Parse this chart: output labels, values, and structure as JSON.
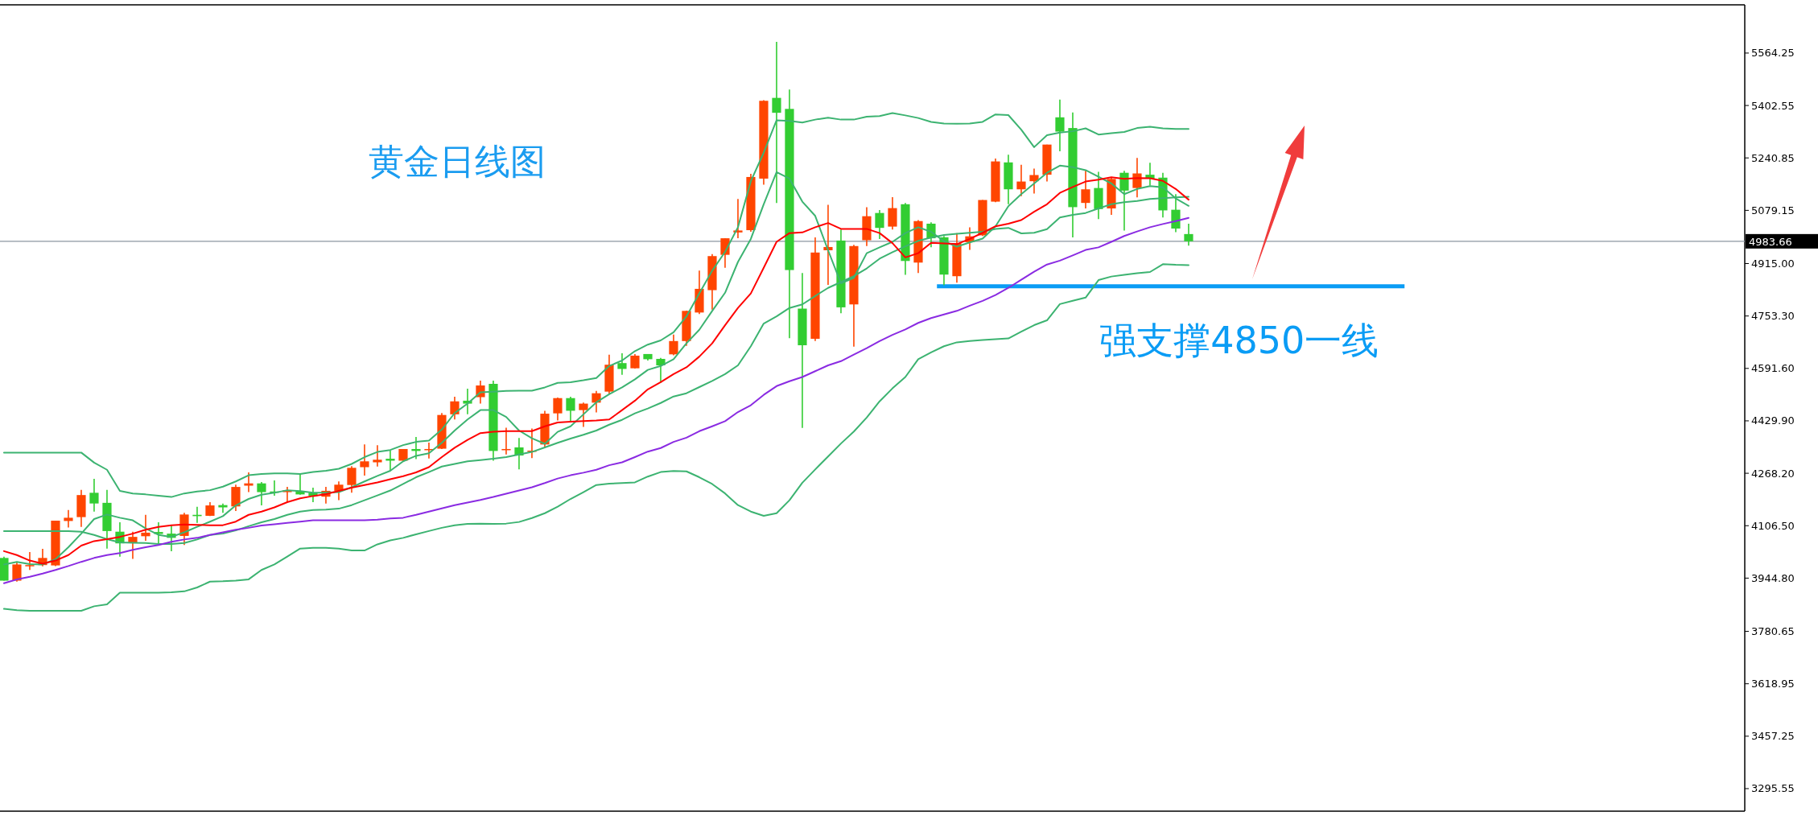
{
  "chart_data": {
    "type": "candlestick",
    "title": "黄金日线图",
    "categories": [
      null,
      null,
      null,
      null,
      null,
      null,
      null,
      null,
      null,
      null,
      null,
      null,
      null,
      null,
      null,
      null,
      null,
      null,
      null,
      null,
      null,
      null,
      null,
      null,
      null,
      null,
      null,
      null,
      null,
      null,
      null,
      null,
      null,
      null,
      null,
      null,
      null,
      null,
      null,
      null,
      null,
      null,
      null,
      null,
      null,
      null,
      null,
      null,
      null,
      null,
      null,
      null,
      null,
      null,
      null,
      null,
      null,
      null,
      null,
      null,
      null,
      null,
      null,
      null,
      null,
      null,
      null,
      null,
      null,
      null,
      null,
      null,
      null,
      null,
      null,
      null,
      null,
      null,
      null,
      null,
      null,
      null,
      null,
      null,
      null,
      null,
      null,
      null,
      null,
      null,
      null,
      null,
      null
    ],
    "ohlc": [
      [
        4007,
        4011,
        3937,
        3937
      ],
      [
        3937,
        3995,
        3934,
        3987
      ],
      [
        3982,
        4025,
        3970,
        3985
      ],
      [
        3985,
        4035,
        3981,
        4007
      ],
      [
        3984,
        4122,
        3982,
        4122
      ],
      [
        4121,
        4155,
        4101,
        4131
      ],
      [
        4133,
        4217,
        4103,
        4201
      ],
      [
        4208,
        4251,
        4150,
        4175
      ],
      [
        4177,
        4217,
        4036,
        4090
      ],
      [
        4088,
        4117,
        4011,
        4052
      ],
      [
        4055,
        4088,
        4004,
        4072
      ],
      [
        4074,
        4140,
        4060,
        4085
      ],
      [
        4087,
        4117,
        4050,
        4081
      ],
      [
        4082,
        4107,
        4028,
        4069
      ],
      [
        4075,
        4146,
        4047,
        4141
      ],
      [
        4140,
        4165,
        4115,
        4136
      ],
      [
        4137,
        4179,
        4136,
        4169
      ],
      [
        4170,
        4175,
        4146,
        4163
      ],
      [
        4166,
        4233,
        4152,
        4226
      ],
      [
        4230,
        4271,
        4210,
        4237
      ],
      [
        4237,
        4241,
        4169,
        4210
      ],
      [
        4212,
        4246,
        4199,
        4208
      ],
      [
        4210,
        4226,
        4179,
        4216
      ],
      [
        4214,
        4266,
        4202,
        4203
      ],
      [
        4208,
        4224,
        4179,
        4198
      ],
      [
        4196,
        4226,
        4175,
        4214
      ],
      [
        4214,
        4243,
        4185,
        4233
      ],
      [
        4232,
        4290,
        4208,
        4285
      ],
      [
        4287,
        4357,
        4261,
        4305
      ],
      [
        4302,
        4355,
        4289,
        4310
      ],
      [
        4313,
        4338,
        4275,
        4307
      ],
      [
        4307,
        4343,
        4305,
        4343
      ],
      [
        4343,
        4380,
        4312,
        4337
      ],
      [
        4340,
        4363,
        4314,
        4343
      ],
      [
        4344,
        4454,
        4343,
        4448
      ],
      [
        4450,
        4504,
        4434,
        4490
      ],
      [
        4492,
        4529,
        4450,
        4483
      ],
      [
        4503,
        4554,
        4483,
        4539
      ],
      [
        4544,
        4554,
        4307,
        4337
      ],
      [
        4340,
        4409,
        4326,
        4343
      ],
      [
        4348,
        4377,
        4280,
        4323
      ],
      [
        4336,
        4406,
        4315,
        4338
      ],
      [
        4357,
        4461,
        4348,
        4452
      ],
      [
        4453,
        4502,
        4431,
        4500
      ],
      [
        4500,
        4504,
        4425,
        4461
      ],
      [
        4463,
        4486,
        4411,
        4483
      ],
      [
        4486,
        4522,
        4456,
        4515
      ],
      [
        4520,
        4634,
        4514,
        4603
      ],
      [
        4608,
        4638,
        4572,
        4590
      ],
      [
        4592,
        4636,
        4591,
        4631
      ],
      [
        4636,
        4636,
        4616,
        4620
      ],
      [
        4621,
        4624,
        4547,
        4601
      ],
      [
        4635,
        4696,
        4632,
        4676
      ],
      [
        4676,
        4770,
        4661,
        4769
      ],
      [
        4764,
        4893,
        4759,
        4837
      ],
      [
        4833,
        4944,
        4773,
        4938
      ],
      [
        4942,
        4993,
        4902,
        4993
      ],
      [
        5011,
        5114,
        4993,
        5017
      ],
      [
        5018,
        5192,
        5013,
        5182
      ],
      [
        5177,
        5419,
        5158,
        5417
      ],
      [
        5426,
        5599,
        5102,
        5380
      ],
      [
        5392,
        5452,
        4685,
        4895
      ],
      [
        4776,
        4886,
        4408,
        4663
      ],
      [
        4683,
        4996,
        4676,
        4949
      ],
      [
        4956,
        5096,
        4849,
        4966
      ],
      [
        4986,
        5020,
        4762,
        4780
      ],
      [
        4789,
        4973,
        4659,
        4969
      ],
      [
        4987,
        5089,
        4969,
        5061
      ],
      [
        5071,
        5080,
        4991,
        5025
      ],
      [
        5029,
        5120,
        5020,
        5086
      ],
      [
        5098,
        5102,
        4880,
        4923
      ],
      [
        4918,
        5049,
        4886,
        5046
      ],
      [
        5038,
        5042,
        4965,
        4993
      ],
      [
        4996,
        5000,
        4848,
        4881
      ],
      [
        4876,
        5009,
        4856,
        4978
      ],
      [
        4981,
        5027,
        4957,
        4999
      ],
      [
        5002,
        5111,
        5000,
        5111
      ],
      [
        5106,
        5239,
        5104,
        5230
      ],
      [
        5227,
        5251,
        5098,
        5144
      ],
      [
        5144,
        5220,
        5123,
        5168
      ],
      [
        5169,
        5208,
        5131,
        5188
      ],
      [
        5189,
        5282,
        5168,
        5282
      ],
      [
        5366,
        5421,
        5261,
        5322
      ],
      [
        5333,
        5381,
        4996,
        5089
      ],
      [
        5102,
        5202,
        5085,
        5144
      ],
      [
        5148,
        5198,
        5052,
        5083
      ],
      [
        5085,
        5181,
        5065,
        5176
      ],
      [
        5195,
        5201,
        5017,
        5140
      ],
      [
        5148,
        5241,
        5119,
        5193
      ],
      [
        5189,
        5226,
        5156,
        5177
      ],
      [
        5180,
        5195,
        5057,
        5079
      ],
      [
        5081,
        5129,
        5012,
        5023
      ],
      [
        5006,
        5038,
        4970,
        4983.66
      ]
    ],
    "colors": [
      "#32cd32",
      "#ff4500",
      "#ff4500",
      "#ff4500",
      "#ff4500",
      "#ff4500",
      "#ff4500",
      "#32cd32",
      "#32cd32",
      "#32cd32",
      "#ff4500",
      "#ff4500",
      "#32cd32",
      "#32cd32",
      "#ff4500",
      "#32cd32",
      "#ff4500",
      "#32cd32",
      "#ff4500",
      "#ff4500",
      "#32cd32",
      "#32cd32",
      "#ff4500",
      "#32cd32",
      "#32cd32",
      "#ff4500",
      "#ff4500",
      "#ff4500",
      "#ff4500",
      "#ff4500",
      "#32cd32",
      "#ff4500",
      "#32cd32",
      "#ff4500",
      "#ff4500",
      "#ff4500",
      "#32cd32",
      "#ff4500",
      "#32cd32",
      "#ff4500",
      "#32cd32",
      "#ff4500",
      "#ff4500",
      "#ff4500",
      "#32cd32",
      "#ff4500",
      "#ff4500",
      "#ff4500",
      "#32cd32",
      "#ff4500",
      "#32cd32",
      "#32cd32",
      "#ff4500",
      "#ff4500",
      "#ff4500",
      "#ff4500",
      "#ff4500",
      "#ff4500",
      "#ff4500",
      "#ff4500",
      "#32cd32",
      "#32cd32",
      "#32cd32",
      "#ff4500",
      "#ff4500",
      "#32cd32",
      "#ff4500",
      "#ff4500",
      "#32cd32",
      "#ff4500",
      "#32cd32",
      "#ff4500",
      "#32cd32",
      "#32cd32",
      "#ff4500",
      "#ff4500",
      "#ff4500",
      "#ff4500",
      "#32cd32",
      "#ff4500",
      "#ff4500",
      "#ff4500",
      "#32cd32",
      "#32cd32",
      "#ff4500",
      "#32cd32",
      "#ff4500",
      "#32cd32",
      "#ff4500",
      "#32cd32",
      "#32cd32",
      "#32cd32",
      "#32cd32"
    ],
    "series": [
      {
        "type": "line",
        "color": "#3cb371",
        "values": [
          4332,
          4332,
          4332,
          4332,
          4332,
          4332,
          4332,
          4301,
          4279,
          4214,
          4206,
          4203,
          4199,
          4195,
          4206,
          4212,
          4216,
          4227,
          4243,
          4262,
          4266,
          4268,
          4268,
          4266,
          4272,
          4276,
          4282,
          4297,
          4318,
          4334,
          4340,
          4355,
          4365,
          4369,
          4403,
          4454,
          4483,
          4518,
          4520,
          4522,
          4523,
          4523,
          4533,
          4547,
          4549,
          4555,
          4562,
          4599,
          4616,
          4645,
          4665,
          4678,
          4703,
          4752,
          4823,
          4893,
          4951,
          5027,
          5169,
          5257,
          5357,
          5355,
          5350,
          5359,
          5365,
          5359,
          5359,
          5368,
          5370,
          5379,
          5372,
          5364,
          5352,
          5347,
          5346,
          5347,
          5352,
          5375,
          5373,
          5328,
          5274,
          5311,
          5319,
          5323,
          5332,
          5313,
          5317,
          5321,
          5333,
          5337,
          5332,
          5330,
          5330
        ]
      },
      {
        "type": "line",
        "color": "#3cb371",
        "values": [
          3987,
          3995,
          3988,
          3987,
          4003,
          4040,
          4082,
          4127,
          4141,
          4131,
          4123,
          4098,
          4078,
          4072,
          4086,
          4103,
          4119,
          4136,
          4169,
          4189,
          4202,
          4208,
          4216,
          4213,
          4208,
          4208,
          4210,
          4225,
          4243,
          4260,
          4276,
          4305,
          4322,
          4330,
          4362,
          4400,
          4434,
          4463,
          4463,
          4442,
          4400,
          4376,
          4359,
          4396,
          4413,
          4450,
          4487,
          4512,
          4533,
          4558,
          4587,
          4599,
          4620,
          4669,
          4711,
          4769,
          4825,
          4920,
          4991,
          5098,
          5197,
          5177,
          5106,
          5062,
          4956,
          4854,
          4871,
          4947,
          4965,
          4982,
          5009,
          5027,
          5013,
          4984,
          4967,
          4980,
          4992,
          5030,
          5092,
          5129,
          5162,
          5195,
          5217,
          5212,
          5203,
          5183,
          5162,
          5129,
          5145,
          5154,
          5150,
          5116,
          5093
        ]
      },
      {
        "type": "line",
        "color": "#3cb371",
        "values": [
          4090,
          4090,
          4090,
          4090,
          4090,
          4090,
          4088,
          4078,
          4065,
          4055,
          4054,
          4053,
          4050,
          4050,
          4053,
          4064,
          4078,
          4082,
          4092,
          4105,
          4117,
          4127,
          4140,
          4150,
          4155,
          4156,
          4159,
          4170,
          4185,
          4200,
          4215,
          4235,
          4256,
          4272,
          4289,
          4297,
          4305,
          4309,
          4313,
          4318,
          4326,
          4334,
          4348,
          4362,
          4375,
          4387,
          4400,
          4418,
          4433,
          4453,
          4468,
          4485,
          4505,
          4515,
          4534,
          4553,
          4574,
          4601,
          4660,
          4730,
          4752,
          4778,
          4789,
          4815,
          4840,
          4858,
          4876,
          4900,
          4930,
          4950,
          4968,
          4985,
          4995,
          5003,
          5007,
          5010,
          5013,
          5022,
          5025,
          5008,
          5010,
          5021,
          5057,
          5065,
          5071,
          5085,
          5098,
          5104,
          5108,
          5114,
          5117,
          5119,
          5121
        ]
      },
      {
        "type": "line",
        "color": "#3cb371",
        "values": [
          3850,
          3846,
          3844,
          3844,
          3844,
          3844,
          3844,
          3858,
          3864,
          3900,
          3900,
          3900,
          3900,
          3901,
          3904,
          3916,
          3934,
          3935,
          3937,
          3941,
          3970,
          3987,
          4011,
          4036,
          4038,
          4038,
          4036,
          4030,
          4030,
          4049,
          4061,
          4069,
          4080,
          4090,
          4100,
          4108,
          4112,
          4113,
          4112,
          4113,
          4118,
          4130,
          4145,
          4165,
          4189,
          4210,
          4232,
          4236,
          4238,
          4240,
          4258,
          4272,
          4275,
          4274,
          4256,
          4235,
          4206,
          4170,
          4150,
          4137,
          4145,
          4185,
          4239,
          4280,
          4320,
          4360,
          4397,
          4440,
          4490,
          4530,
          4565,
          4620,
          4641,
          4660,
          4672,
          4676,
          4679,
          4682,
          4684,
          4705,
          4725,
          4740,
          4790,
          4800,
          4810,
          4864,
          4875,
          4880,
          4885,
          4889,
          4913,
          4911,
          4910
        ]
      },
      {
        "type": "line",
        "color": "#ff0000",
        "values": [
          4028,
          4016,
          3999,
          3989,
          3999,
          4016,
          4045,
          4059,
          4065,
          4072,
          4082,
          4094,
          4103,
          4108,
          4110,
          4109,
          4108,
          4108,
          4119,
          4140,
          4150,
          4163,
          4179,
          4191,
          4198,
          4204,
          4214,
          4224,
          4232,
          4240,
          4250,
          4259,
          4271,
          4287,
          4318,
          4347,
          4371,
          4392,
          4396,
          4398,
          4398,
          4398,
          4413,
          4425,
          4427,
          4429,
          4431,
          4434,
          4463,
          4492,
          4527,
          4549,
          4574,
          4595,
          4628,
          4669,
          4725,
          4778,
          4823,
          4902,
          4982,
          5009,
          5011,
          5027,
          5040,
          5022,
          5022,
          5022,
          5009,
          4978,
          4934,
          4947,
          4979,
          4977,
          4975,
          4991,
          5010,
          5030,
          5038,
          5049,
          5075,
          5098,
          5133,
          5151,
          5168,
          5174,
          5181,
          5176,
          5179,
          5178,
          5170,
          5145,
          5112
        ]
      },
      {
        "type": "line",
        "color": "#8a2be2",
        "values": [
          3929,
          3941,
          3949,
          3959,
          3970,
          3982,
          3995,
          4007,
          4016,
          4022,
          4032,
          4040,
          4047,
          4057,
          4064,
          4069,
          4078,
          4086,
          4094,
          4100,
          4107,
          4111,
          4115,
          4119,
          4123,
          4123,
          4123,
          4123,
          4123,
          4125,
          4129,
          4131,
          4140,
          4150,
          4160,
          4170,
          4178,
          4186,
          4195,
          4205,
          4215,
          4225,
          4238,
          4252,
          4262,
          4270,
          4279,
          4293,
          4302,
          4318,
          4335,
          4346,
          4365,
          4378,
          4398,
          4413,
          4429,
          4457,
          4478,
          4510,
          4537,
          4552,
          4565,
          4583,
          4601,
          4614,
          4634,
          4654,
          4676,
          4695,
          4712,
          4732,
          4747,
          4758,
          4769,
          4785,
          4800,
          4818,
          4840,
          4865,
          4890,
          4912,
          4924,
          4940,
          4957,
          4965,
          4982,
          5000,
          5014,
          5027,
          5037,
          5046,
          5056
        ]
      }
    ],
    "ylim": [
      3226,
      5713
    ],
    "yticks": [
      5564.25,
      5402.55,
      5240.85,
      5079.15,
      {
        "value": 4915,
        "label": "4915.00"
      },
      {
        "value": 4753.3,
        "label": "4753.30"
      },
      {
        "value": 4591.6,
        "label": "4591.60"
      },
      {
        "value": 4429.9,
        "label": "4429.90"
      },
      {
        "value": 4268.2,
        "label": "4268.20"
      },
      {
        "value": 4106.5,
        "label": "4106.50"
      },
      {
        "value": 3944.8,
        "label": "3944.80"
      },
      3780.65,
      3618.95,
      3457.25,
      3295.55
    ],
    "ref_lines": [
      {
        "axis": "y",
        "value": 4983.66,
        "label": "4983.66",
        "color": "#8c96a0"
      },
      {
        "axis": "y",
        "value": 4845,
        "label": "强支撑4850一线",
        "color": "#0a9cf5"
      }
    ],
    "tick_labels": "y"
  }
}
